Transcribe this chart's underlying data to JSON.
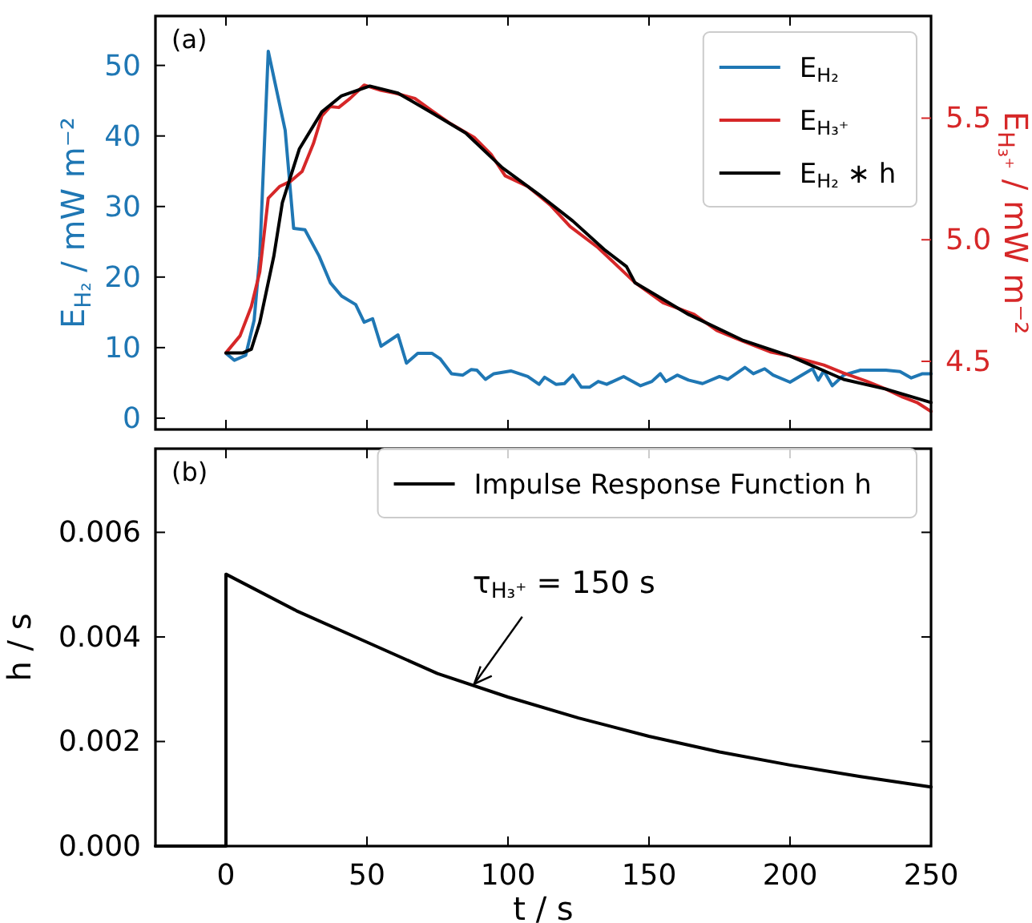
{
  "chart_data": [
    {
      "type": "line",
      "annotations": [
        "(a)"
      ],
      "ylabel": "E$_{H₂}$ / mW m⁻²",
      "y2label": "E$_{H₃⁺}$ / mW m⁻²",
      "xlim": [
        -25,
        250
      ],
      "xticks": [
        0,
        50,
        100,
        150,
        200,
        250
      ],
      "ylim": [
        -1.6,
        57
      ],
      "yticks": [
        0,
        10,
        20,
        30,
        40,
        50
      ],
      "y2lim": [
        4.22,
        5.92
      ],
      "y2ticks": [
        {
          "value": 4.5,
          "label": "4.5"
        },
        {
          "value": 5,
          "label": "5.0"
        },
        {
          "value": 5.5,
          "label": "5.5"
        }
      ],
      "tick_labels": "y",
      "legend": "top right",
      "series": [
        {
          "name": "E$_{H₂}$",
          "color": "#1f77b4",
          "x": [
            0,
            3,
            7,
            10,
            12,
            15,
            21,
            24,
            28,
            33,
            37,
            41,
            46,
            49,
            52,
            55,
            61,
            64,
            68,
            73,
            76,
            80,
            84,
            87,
            89,
            92,
            95,
            101,
            107,
            111,
            113,
            117,
            120,
            123,
            126,
            129,
            132,
            135,
            141,
            147,
            151,
            154,
            156,
            160,
            164,
            169,
            175,
            178,
            184,
            187,
            191,
            194,
            200,
            205,
            208,
            210,
            212,
            215,
            219,
            225,
            234,
            239,
            243,
            247,
            250
          ],
          "values": [
            9.2,
            8.2,
            8.9,
            13.9,
            23,
            52,
            40.8,
            26.9,
            26.7,
            23,
            19.2,
            17.3,
            16.1,
            13.6,
            14.1,
            10.2,
            11.8,
            7.8,
            9.2,
            9.2,
            8.4,
            6.3,
            6.1,
            6.9,
            6.8,
            5.5,
            6.3,
            6.7,
            5.9,
            4.8,
            5.8,
            4.8,
            4.9,
            6.1,
            4.4,
            4.4,
            5.2,
            4.8,
            5.9,
            4.6,
            5.2,
            6.3,
            5.2,
            6.1,
            5.4,
            4.9,
            5.9,
            5.5,
            7.2,
            6.3,
            7,
            6.1,
            5.1,
            6.3,
            7,
            5.4,
            6.7,
            4.6,
            6.1,
            6.8,
            6.8,
            6.6,
            5.7,
            6.3,
            6.3
          ]
        },
        {
          "name": "E$_{H₃⁺}$",
          "color": "#d62728",
          "axis": "y2",
          "x": [
            0,
            5,
            9,
            12,
            15,
            19,
            23,
            27,
            31,
            34,
            37,
            40,
            44,
            49,
            55,
            60,
            67,
            73,
            79,
            88,
            94,
            99,
            107,
            115,
            122,
            132,
            139,
            145,
            155,
            166,
            174,
            183,
            193,
            200,
            212,
            219,
            227,
            234,
            240,
            245,
            250
          ],
          "values": [
            4.535,
            4.605,
            4.726,
            4.868,
            5.171,
            5.219,
            5.241,
            5.281,
            5.395,
            5.509,
            5.548,
            5.544,
            5.581,
            5.636,
            5.614,
            5.603,
            5.581,
            5.531,
            5.482,
            5.421,
            5.351,
            5.263,
            5.219,
            5.143,
            5.055,
            4.967,
            4.89,
            4.824,
            4.741,
            4.693,
            4.627,
            4.584,
            4.539,
            4.522,
            4.485,
            4.452,
            4.419,
            4.386,
            4.353,
            4.331,
            4.294
          ]
        },
        {
          "name": "E$_{H₂}$ ∗ h",
          "color": "#000000",
          "axis": "y2",
          "x": [
            0,
            6,
            9,
            12,
            17,
            20,
            26,
            34,
            41,
            51,
            61,
            73,
            85,
            98,
            111,
            123,
            134,
            142,
            145,
            164,
            183,
            200,
            219,
            234,
            250
          ],
          "values": [
            4.535,
            4.535,
            4.55,
            4.66,
            4.934,
            5.153,
            5.373,
            5.526,
            5.592,
            5.632,
            5.603,
            5.522,
            5.439,
            5.296,
            5.186,
            5.077,
            4.961,
            4.89,
            4.824,
            4.693,
            4.588,
            4.522,
            4.426,
            4.386,
            4.331
          ]
        }
      ]
    },
    {
      "type": "line",
      "annotations": [
        "(b)",
        {
          "text": "τ$_{H₃⁺}$  = 150 s",
          "x": 88,
          "y": 0.0031
        }
      ],
      "xlabel": "t / s",
      "ylabel": "h / s",
      "xlim": [
        -25,
        250
      ],
      "xticks": [
        0,
        50,
        100,
        150,
        200,
        250
      ],
      "ylim": [
        0,
        0.0076
      ],
      "yticks": [
        {
          "value": 0,
          "label": "0.000"
        },
        {
          "value": 0.002,
          "label": "0.002"
        },
        {
          "value": 0.004,
          "label": "0.004"
        },
        {
          "value": 0.006,
          "label": "0.006"
        }
      ],
      "legend": "top right",
      "series": [
        {
          "name": "Impulse Response Function h",
          "color": "#000000",
          "x": [
            -25,
            0,
            0,
            25,
            50,
            75,
            100,
            125,
            150,
            175,
            200,
            225,
            250
          ],
          "values": [
            0,
            0,
            0.0052,
            0.0045,
            0.0039,
            0.0033,
            0.00285,
            0.00245,
            0.0021,
            0.0018,
            0.00155,
            0.00133,
            0.00113
          ]
        }
      ]
    }
  ]
}
